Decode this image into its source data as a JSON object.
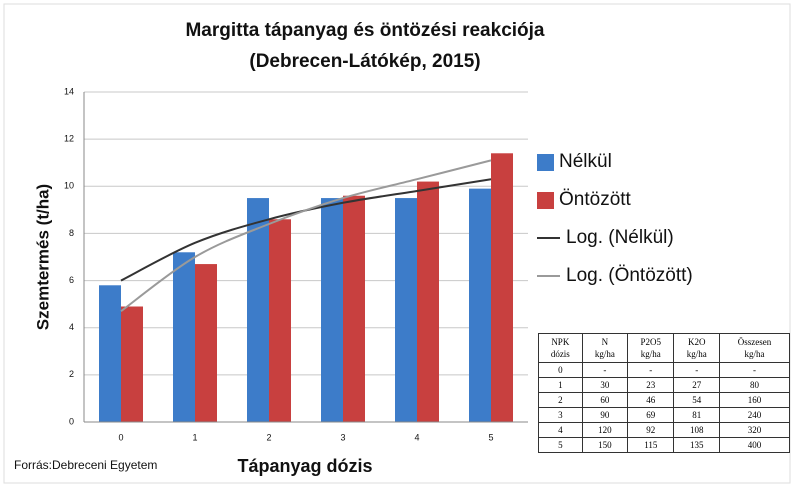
{
  "chart_data": {
    "type": "bar",
    "title": "Margitta tápanyag és öntözési reakciója",
    "subtitle": "(Debrecen-Látókép, 2015)",
    "y_label": "Szemtermés (t/ha)",
    "x_label": "Tápanyag dózis",
    "source": "Forrás:Debreceni Egyetem",
    "categories": [
      "0",
      "1",
      "2",
      "3",
      "4",
      "5"
    ],
    "series": [
      {
        "name": "Nélkül",
        "type": "bar",
        "color": "#3d7cc9",
        "values": [
          5.8,
          7.2,
          9.5,
          9.5,
          9.5,
          9.9
        ]
      },
      {
        "name": "Öntözött",
        "type": "bar",
        "color": "#c8403f",
        "values": [
          4.9,
          6.7,
          8.6,
          9.6,
          10.2,
          11.4
        ]
      },
      {
        "name": "Log. (Nélkül)",
        "type": "line",
        "color": "#333333",
        "values": [
          6.0,
          7.6,
          8.6,
          9.3,
          9.8,
          10.3
        ]
      },
      {
        "name": "Log. (Öntözött)",
        "type": "line",
        "color": "#9a9a9a",
        "values": [
          4.7,
          7.0,
          8.4,
          9.5,
          10.3,
          11.1
        ]
      }
    ],
    "ylim": [
      0,
      14
    ],
    "yticks": [
      0,
      2,
      4,
      6,
      8,
      10,
      12,
      14
    ],
    "grid": true,
    "legend": "right"
  },
  "table": {
    "header": [
      [
        "NPK",
        "dózis"
      ],
      [
        "N",
        "kg/ha"
      ],
      [
        "P2O5",
        "kg/ha"
      ],
      [
        "K2O",
        "kg/ha"
      ],
      [
        "Összesen",
        "kg/ha"
      ]
    ],
    "rows": [
      [
        "0",
        "-",
        "-",
        "-",
        "-"
      ],
      [
        "1",
        "30",
        "23",
        "27",
        "80"
      ],
      [
        "2",
        "60",
        "46",
        "54",
        "160"
      ],
      [
        "3",
        "90",
        "69",
        "81",
        "240"
      ],
      [
        "4",
        "120",
        "92",
        "108",
        "320"
      ],
      [
        "5",
        "150",
        "115",
        "135",
        "400"
      ]
    ]
  }
}
